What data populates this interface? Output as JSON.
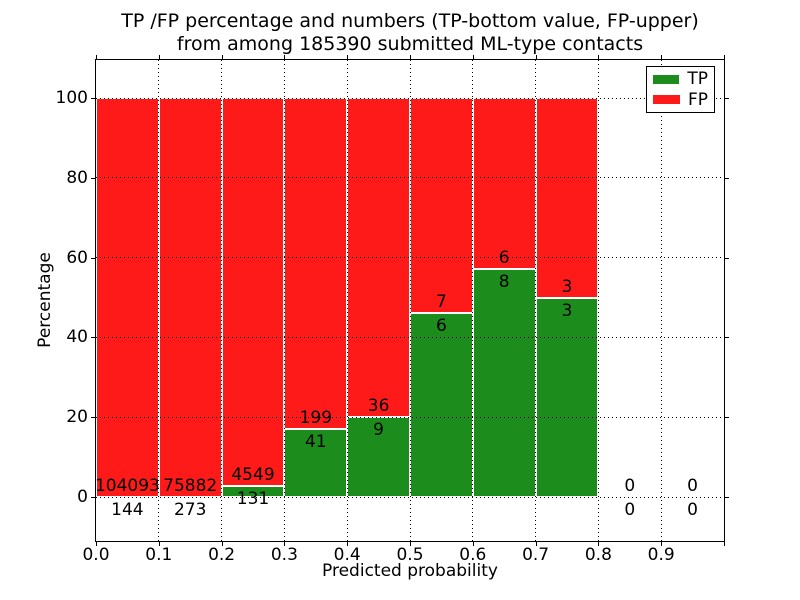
{
  "chart_data": {
    "type": "bar",
    "stacked": true,
    "title_line1": "TP /FP percentage and numbers (TP-bottom value, FP-upper)",
    "title_line2": "from among 185390 submitted ML-type contacts",
    "xlabel": "Predicted probability",
    "ylabel": "Percentage",
    "x_tick_labels": [
      "0.0",
      "0.1",
      "0.2",
      "0.3",
      "0.4",
      "0.5",
      "0.6",
      "0.7",
      "0.8",
      "0.9"
    ],
    "y_tick_values": [
      0,
      20,
      40,
      60,
      80,
      100
    ],
    "xlim": [
      0.0,
      1.0
    ],
    "ylim": [
      -11,
      109
    ],
    "bin_width": 0.1,
    "bar_total_height_pct": 100,
    "grid": true,
    "grid_style": "dotted",
    "bins": [
      {
        "x0": 0.0,
        "x1": 0.1,
        "tp": 144,
        "fp": 104093
      },
      {
        "x0": 0.1,
        "x1": 0.2,
        "tp": 273,
        "fp": 75882
      },
      {
        "x0": 0.2,
        "x1": 0.3,
        "tp": 131,
        "fp": 4549
      },
      {
        "x0": 0.3,
        "x1": 0.4,
        "tp": 41,
        "fp": 199
      },
      {
        "x0": 0.4,
        "x1": 0.5,
        "tp": 9,
        "fp": 36
      },
      {
        "x0": 0.5,
        "x1": 0.6,
        "tp": 6,
        "fp": 7
      },
      {
        "x0": 0.6,
        "x1": 0.7,
        "tp": 8,
        "fp": 6
      },
      {
        "x0": 0.7,
        "x1": 0.8,
        "tp": 3,
        "fp": 3
      },
      {
        "x0": 0.8,
        "x1": 0.9,
        "tp": 0,
        "fp": 0
      },
      {
        "x0": 0.9,
        "x1": 1.0,
        "tp": 0,
        "fp": 0
      }
    ],
    "series": [
      {
        "name": "TP",
        "position": "bottom",
        "color": "#1c8c1c",
        "counts": [
          144,
          273,
          131,
          41,
          9,
          6,
          8,
          3,
          0,
          0
        ]
      },
      {
        "name": "FP",
        "position": "top",
        "color": "#ff1a1a",
        "counts": [
          104093,
          75882,
          4549,
          199,
          36,
          7,
          6,
          3,
          0,
          0
        ]
      }
    ],
    "legend": {
      "position": "upper right",
      "items": [
        {
          "label": "TP",
          "color": "#1c8c1c"
        },
        {
          "label": "FP",
          "color": "#ff1a1a"
        }
      ]
    },
    "colors": {
      "tp": "#1c8c1c",
      "fp": "#ff1a1a",
      "text": "#000000",
      "background": "#ffffff"
    }
  }
}
